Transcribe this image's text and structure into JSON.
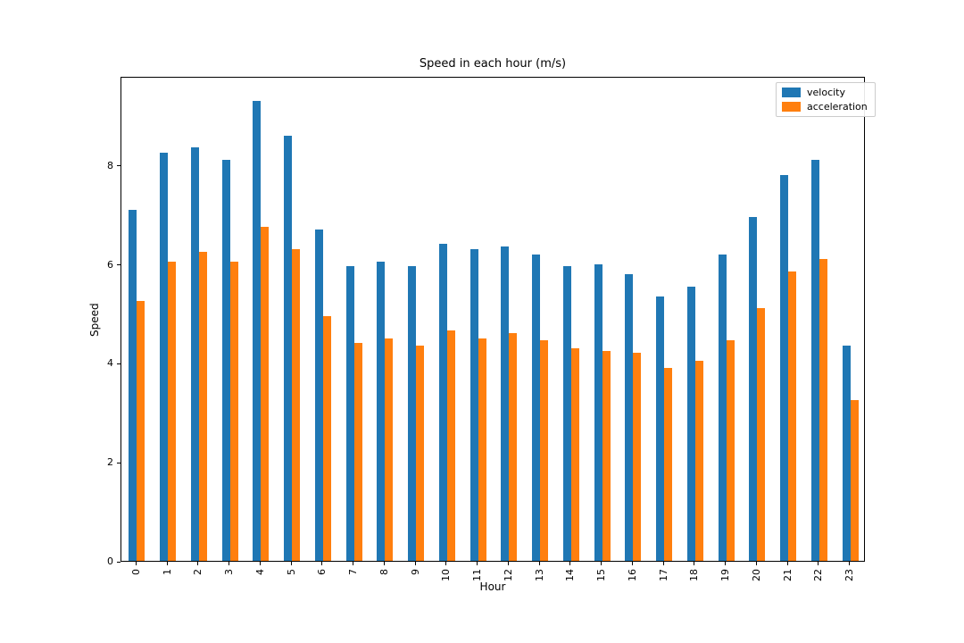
{
  "figure": {
    "background": "#ffffff"
  },
  "chart_data": {
    "type": "bar",
    "title": "Speed in each hour (m/s)",
    "xlabel": "Hour",
    "ylabel": "Speed",
    "categories": [
      "0",
      "1",
      "2",
      "3",
      "4",
      "5",
      "6",
      "7",
      "8",
      "9",
      "10",
      "11",
      "12",
      "13",
      "14",
      "15",
      "16",
      "17",
      "18",
      "19",
      "20",
      "21",
      "22",
      "23"
    ],
    "series": [
      {
        "name": "velocity",
        "color": "#1f77b4",
        "values": [
          7.1,
          8.25,
          8.35,
          8.1,
          9.3,
          8.6,
          6.7,
          5.95,
          6.05,
          5.95,
          6.4,
          6.3,
          6.35,
          6.2,
          5.95,
          6.0,
          5.8,
          5.35,
          5.55,
          6.2,
          6.95,
          7.8,
          8.1,
          4.35
        ]
      },
      {
        "name": "acceleration",
        "color": "#ff7f0e",
        "values": [
          5.25,
          6.05,
          6.25,
          6.05,
          6.75,
          6.3,
          4.95,
          4.4,
          4.5,
          4.35,
          4.65,
          4.5,
          4.6,
          4.45,
          4.3,
          4.25,
          4.2,
          3.9,
          4.05,
          4.45,
          5.1,
          5.85,
          6.1,
          3.25
        ]
      }
    ],
    "ylim": [
      0,
      9.8
    ],
    "yticks": [
      "0",
      "2",
      "4",
      "6",
      "8"
    ],
    "x_tick_rotation": 90,
    "grid": false,
    "legend_position": "upper right",
    "axis_color": "#000000"
  }
}
